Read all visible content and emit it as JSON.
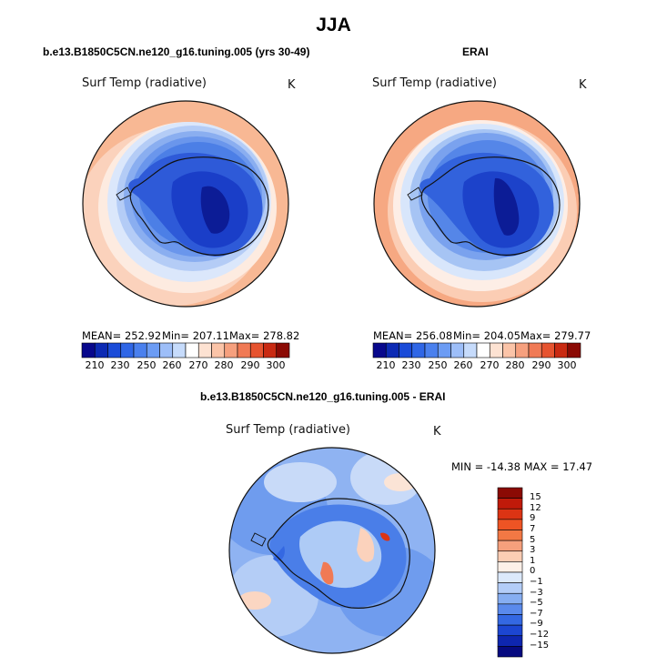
{
  "title": "JJA",
  "panels": [
    {
      "title": "b.e13.B1850C5CN.ne120_g16.tuning.005 (yrs 30-49)",
      "variable": "Surf Temp (radiative)",
      "units": "K",
      "stats": {
        "mean": "MEAN= 252.92",
        "min": "Min= 207.11",
        "max": "Max= 278.82"
      }
    },
    {
      "title": "ERAI",
      "variable": "Surf Temp (radiative)",
      "units": "K",
      "stats": {
        "mean": "MEAN= 256.08",
        "min": "Min= 204.05",
        "max": "Max= 279.77"
      }
    }
  ],
  "abs_colorbar": {
    "labels": [
      "210",
      "230",
      "250",
      "260",
      "270",
      "280",
      "290",
      "300"
    ],
    "colors": [
      "#08088c",
      "#0c2ab4",
      "#1a4bd8",
      "#2f66e6",
      "#4a80ee",
      "#6c9cf4",
      "#9dbef8",
      "#c6dbfb",
      "#ffffff",
      "#fde2d2",
      "#fbc4a8",
      "#f6a07e",
      "#f07a55",
      "#e6532f",
      "#c92a12",
      "#8b0a04"
    ]
  },
  "diff_panel": {
    "title": "b.e13.B1850C5CN.ne120_g16.tuning.005 - ERAI",
    "variable": "Surf Temp (radiative)",
    "units": "K",
    "stats": "MIN = -14.38  MAX =  17.47"
  },
  "diff_colorbar": {
    "labels": [
      "15",
      "12",
      "9",
      "7",
      "5",
      "3",
      "1",
      "0",
      "−1",
      "−3",
      "−5",
      "−7",
      "−9",
      "−12",
      "−15"
    ],
    "colors": [
      "#8b0a04",
      "#c01a0a",
      "#dc3414",
      "#ee5424",
      "#f27844",
      "#f6a07c",
      "#fbcdb4",
      "#fdf0e8",
      "#dce9fb",
      "#b3cdf8",
      "#86aef2",
      "#5a8aec",
      "#3468e2",
      "#1c46d2",
      "#0e26b0",
      "#060a80"
    ]
  }
}
